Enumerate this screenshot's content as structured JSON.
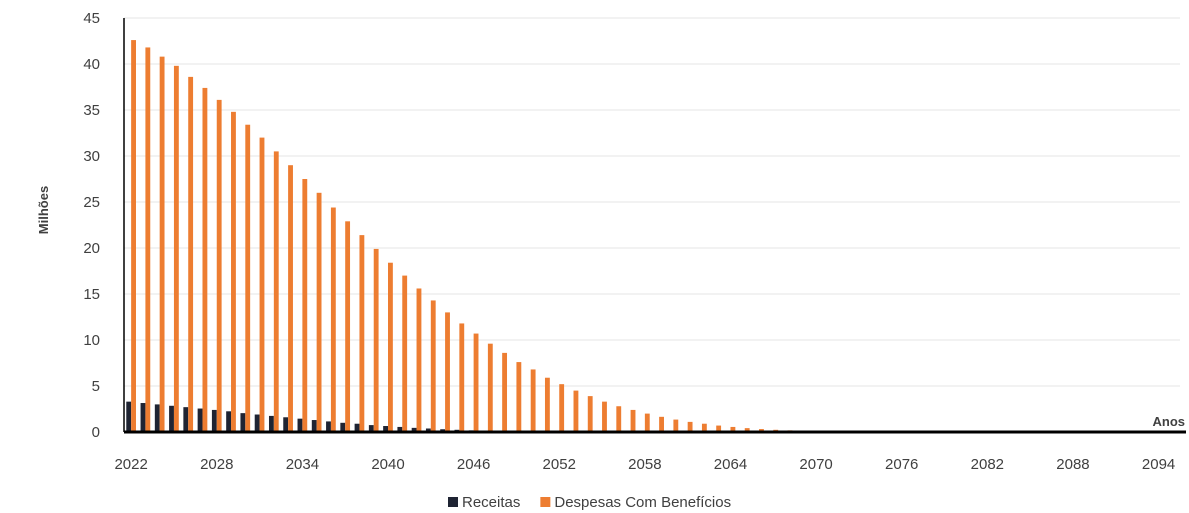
{
  "chart_data": {
    "type": "bar",
    "ylabel": "Milhões",
    "xlabel": "Anos",
    "ylim": [
      0,
      45
    ],
    "yticks": [
      0,
      5,
      10,
      15,
      20,
      25,
      30,
      35,
      40,
      45
    ],
    "x_start": 2022,
    "x_end": 2095,
    "xtick_labels": [
      "2022",
      "2028",
      "2034",
      "2040",
      "2046",
      "2052",
      "2058",
      "2064",
      "2070",
      "2076",
      "2082",
      "2088",
      "2094"
    ],
    "grid": true,
    "legend_position": "bottom",
    "colors": {
      "Receitas": "#1f2433",
      "Despesas Com Benefícios": "#ed7d31"
    },
    "series": [
      {
        "name": "Receitas",
        "values": [
          3.3,
          3.15,
          3.0,
          2.85,
          2.7,
          2.55,
          2.4,
          2.25,
          2.05,
          1.9,
          1.75,
          1.6,
          1.45,
          1.3,
          1.15,
          1.0,
          0.9,
          0.75,
          0.65,
          0.55,
          0.45,
          0.38,
          0.3,
          0.24,
          0.18,
          0.13,
          0.09,
          0.06,
          0.04,
          0.02,
          0.01,
          0.01,
          0,
          0,
          0,
          0,
          0,
          0,
          0,
          0,
          0,
          0,
          0,
          0,
          0,
          0,
          0,
          0,
          0,
          0,
          0,
          0,
          0,
          0,
          0,
          0,
          0,
          0,
          0,
          0,
          0,
          0,
          0,
          0,
          0,
          0,
          0,
          0,
          0,
          0,
          0,
          0,
          0,
          0
        ]
      },
      {
        "name": "Despesas Com Benefícios",
        "values": [
          42.6,
          41.8,
          40.8,
          39.8,
          38.6,
          37.4,
          36.1,
          34.8,
          33.4,
          32.0,
          30.5,
          29.0,
          27.5,
          26.0,
          24.4,
          22.9,
          21.4,
          19.9,
          18.4,
          17.0,
          15.6,
          14.3,
          13.0,
          11.8,
          10.7,
          9.6,
          8.6,
          7.6,
          6.8,
          5.9,
          5.2,
          4.5,
          3.9,
          3.3,
          2.8,
          2.4,
          2.0,
          1.65,
          1.35,
          1.1,
          0.9,
          0.7,
          0.55,
          0.42,
          0.32,
          0.24,
          0.18,
          0.13,
          0.09,
          0.06,
          0.04,
          0.03,
          0.02,
          0.01,
          0.01,
          0,
          0,
          0,
          0,
          0,
          0,
          0,
          0,
          0,
          0,
          0,
          0,
          0,
          0,
          0,
          0,
          0,
          0,
          0
        ]
      }
    ]
  }
}
